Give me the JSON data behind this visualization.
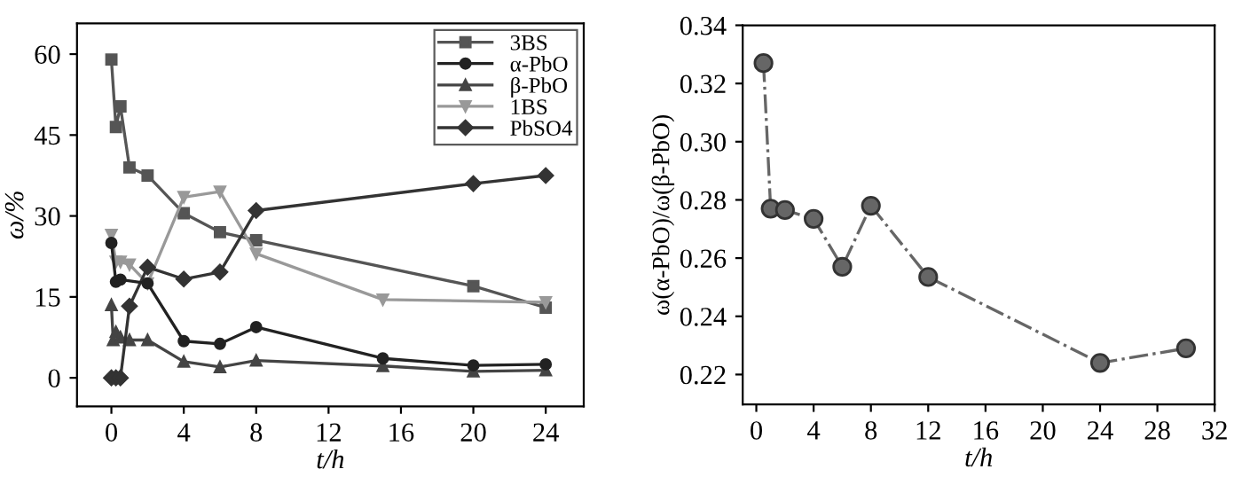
{
  "chart_data": [
    {
      "type": "line",
      "xlabel": "t/h",
      "ylabel": "ω/%",
      "xlim": [
        -1.9,
        26.1
      ],
      "ylim": [
        -5.3,
        65.7
      ],
      "xticks": [
        0,
        4,
        8,
        12,
        16,
        20,
        24
      ],
      "yticks": [
        0,
        15,
        30,
        45,
        60
      ],
      "legend": "top right",
      "grid": false,
      "line_style": "solid",
      "series": [
        {
          "name": "3BS",
          "color": "#555555",
          "marker": "square",
          "x": [
            0,
            0.25,
            0.5,
            1,
            2,
            4,
            6,
            8,
            20,
            24
          ],
          "values": [
            59,
            46.5,
            50.3,
            39,
            37.5,
            30.5,
            27,
            25.5,
            17,
            13
          ]
        },
        {
          "name": "α-PbO",
          "color": "#222222",
          "marker": "circle",
          "x": [
            0,
            0.25,
            0.5,
            2,
            4,
            6,
            8,
            15,
            20,
            24
          ],
          "values": [
            25,
            17.8,
            18.2,
            17.5,
            6.8,
            6.3,
            9.4,
            3.6,
            2.3,
            2.5
          ]
        },
        {
          "name": "β-PbO",
          "color": "#444444",
          "marker": "triangle",
          "x": [
            0,
            0.1,
            0.25,
            0.5,
            1,
            2,
            4,
            6,
            8,
            15,
            20,
            24
          ],
          "values": [
            13.5,
            7,
            8.5,
            7.5,
            7,
            7,
            3,
            2,
            3.2,
            2.2,
            1.2,
            1.4
          ]
        },
        {
          "name": "1BS",
          "color": "#999999",
          "marker": "triangle_down",
          "x": [
            0,
            0.25,
            0.5,
            1,
            2,
            4,
            6,
            8,
            15,
            24
          ],
          "values": [
            26.5,
            21.5,
            21.5,
            21,
            17.5,
            33.5,
            34.5,
            23,
            14.5,
            14
          ]
        },
        {
          "name": "PbSO4",
          "color": "#333333",
          "marker": "diamond",
          "x": [
            0,
            0.25,
            0.5,
            1,
            2,
            4,
            6,
            8,
            20,
            24
          ],
          "values": [
            0,
            0,
            0,
            13.3,
            20.5,
            18.3,
            19.6,
            31,
            36,
            37.5
          ]
        }
      ]
    },
    {
      "type": "line",
      "xlabel": "t/h",
      "ylabel": "ω(α-PbO)/ω(β-PbO)",
      "xlim": [
        -0.95,
        32
      ],
      "ylim": [
        0.2097,
        0.34
      ],
      "xticks": [
        0,
        4,
        8,
        12,
        16,
        20,
        24,
        28,
        32
      ],
      "yticks": [
        {
          "value": 0.22,
          "label": "0.22"
        },
        {
          "value": 0.24,
          "label": "0.24"
        },
        {
          "value": 0.26,
          "label": "0.26"
        },
        {
          "value": 0.28,
          "label": "0.28"
        },
        {
          "value": 0.3,
          "label": "0.30"
        },
        {
          "value": 0.32,
          "label": "0.32"
        },
        {
          "value": 0.34,
          "label": "0.34"
        }
      ],
      "grid": false,
      "line_style": "dashdot",
      "marker": "circle",
      "series": [
        {
          "color": "#666666",
          "x": [
            0.5,
            1,
            2,
            4,
            6,
            8,
            12,
            24,
            30
          ],
          "values": [
            0.327,
            0.277,
            0.2765,
            0.2735,
            0.257,
            0.278,
            0.2535,
            0.224,
            0.229
          ]
        }
      ]
    }
  ]
}
